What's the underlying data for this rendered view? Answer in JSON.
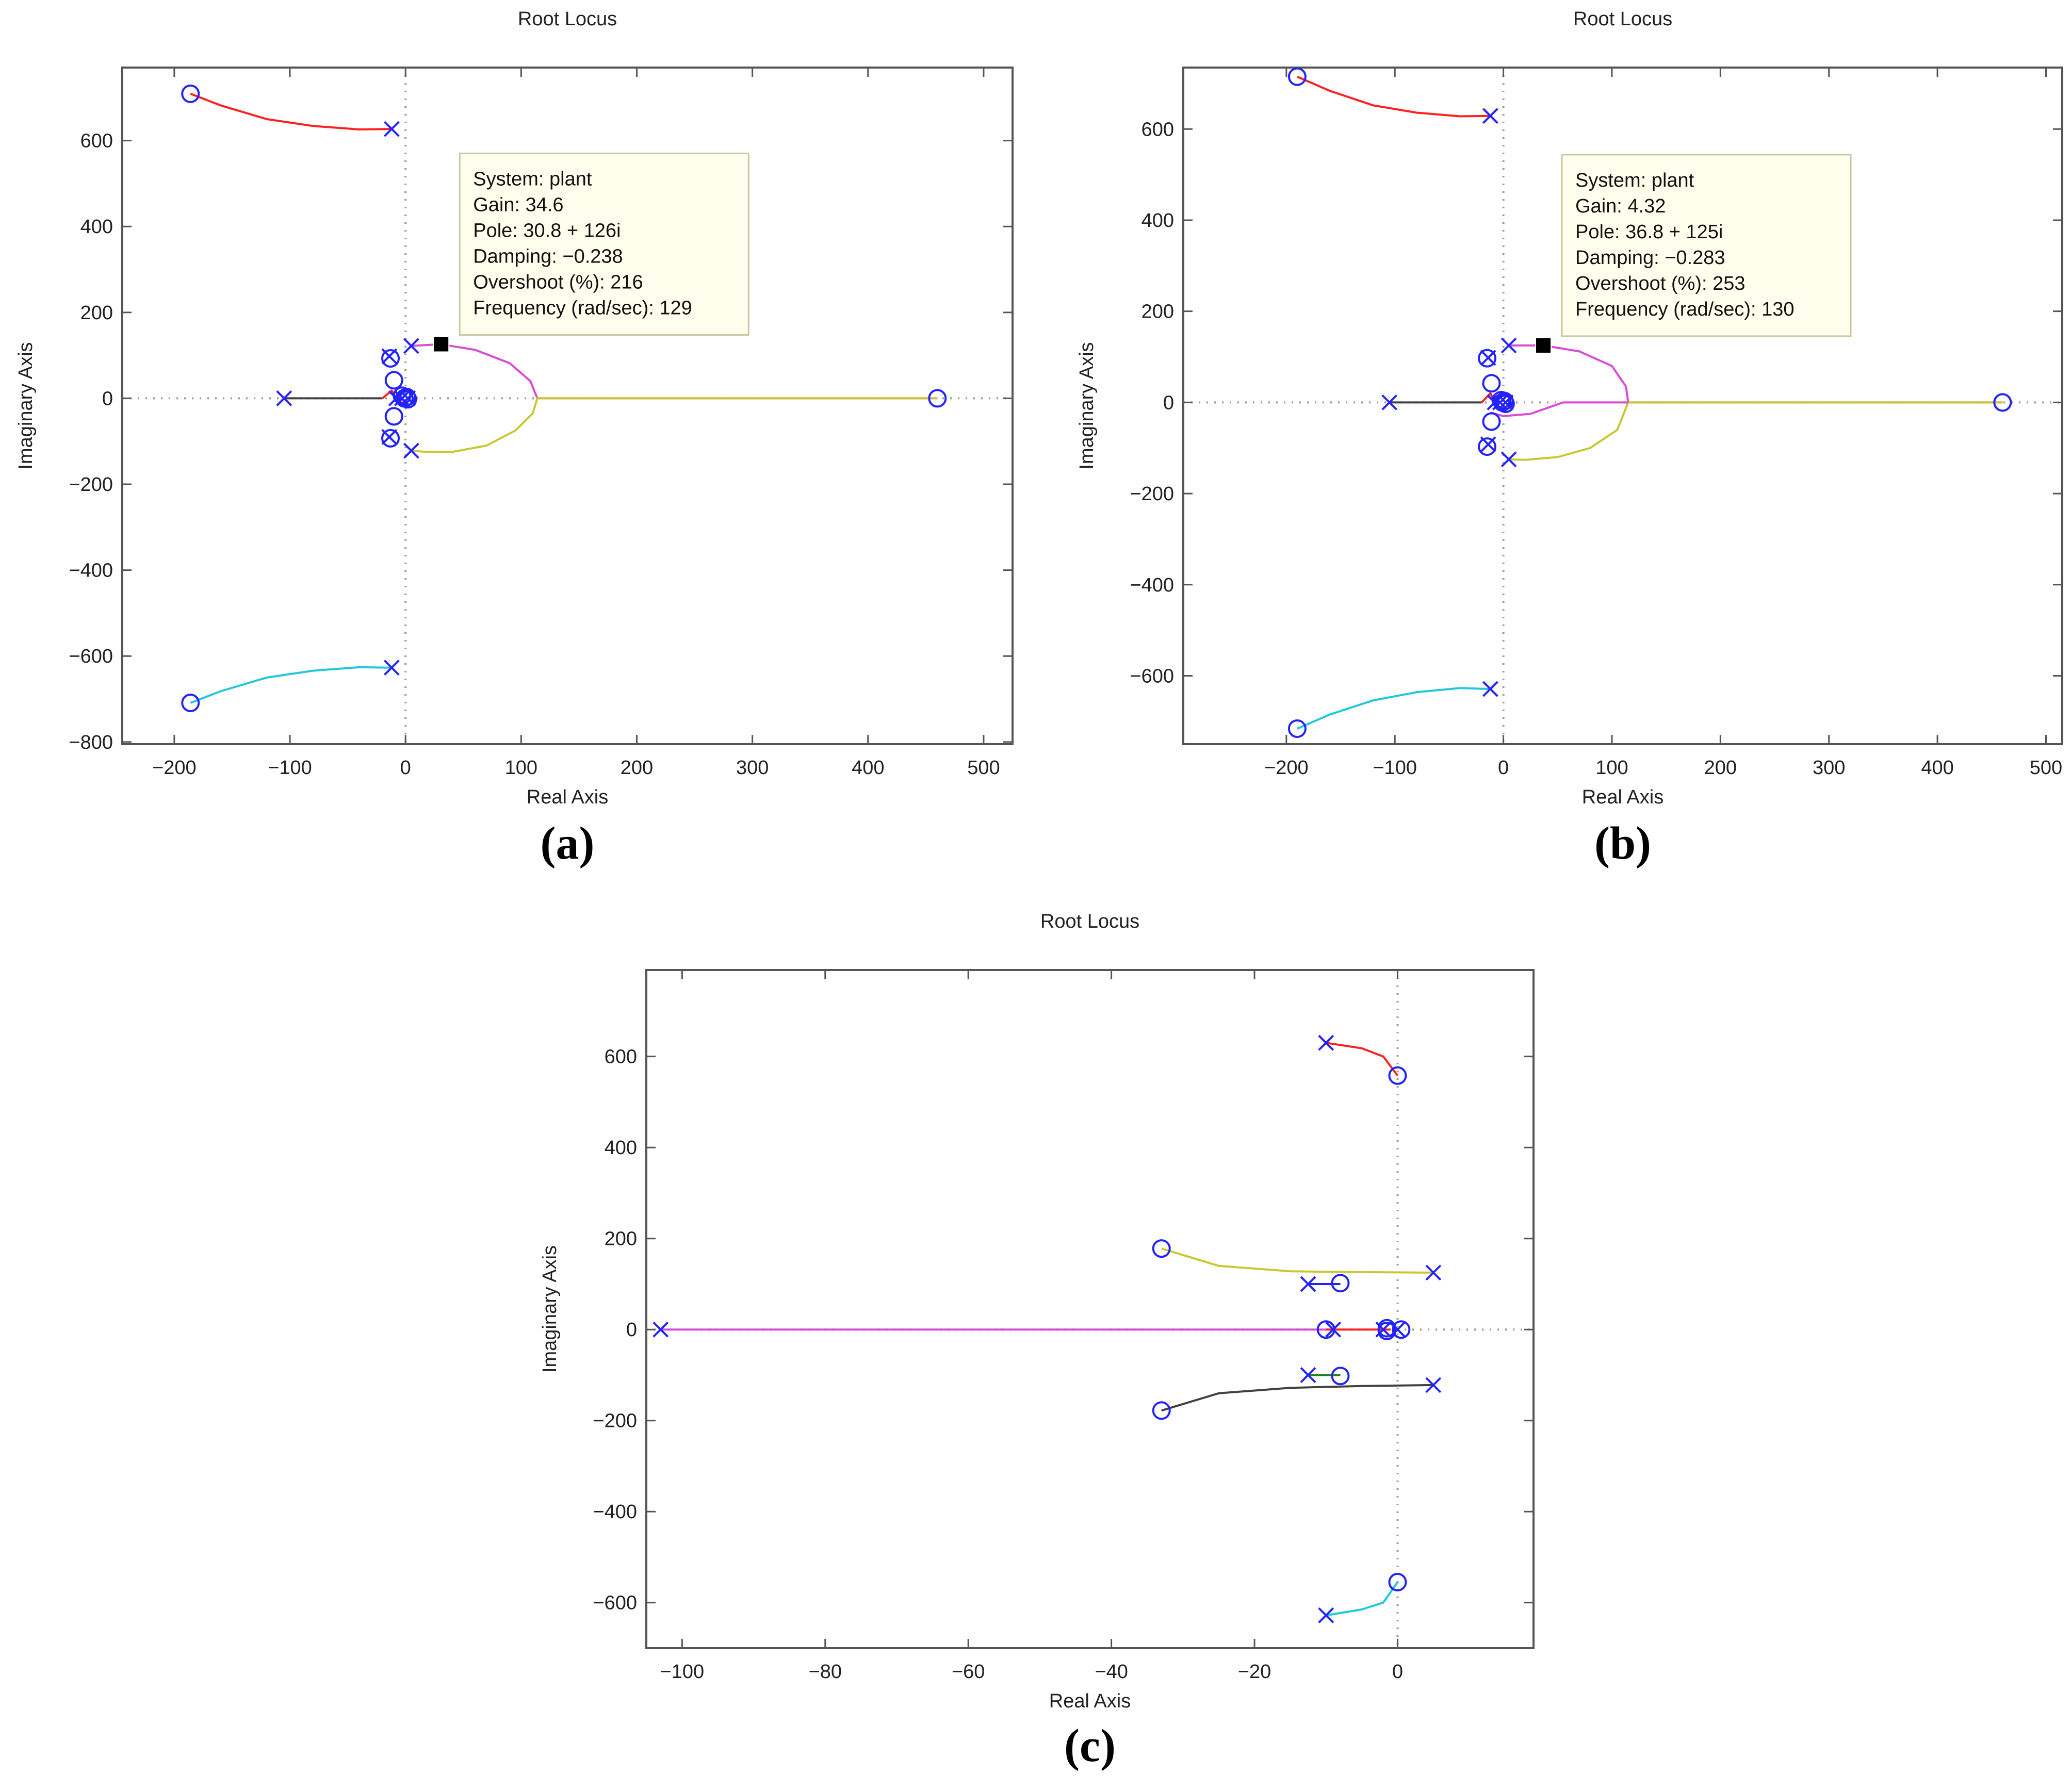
{
  "colors": {
    "background": "#ffffff",
    "axis_frame": "#555555",
    "axis_text": "#222222",
    "pole_zero_marker": "#2323ff",
    "zero_axis_dotted": "#9a9a9a",
    "datatip_background": "#ffffee",
    "datatip_border": "#c8c8a0",
    "datatip_marker": "#000000"
  },
  "chart_data": [
    {
      "type": "line",
      "panel": "a",
      "caption": {
        "open": "(",
        "letter": "a",
        "close": ")"
      },
      "title": "Root Locus",
      "xlabel": "Real Axis",
      "ylabel": "Imaginary Axis",
      "xlim": [
        -245,
        525
      ],
      "ylim": [
        -805,
        770
      ],
      "xticks": [
        -200,
        -100,
        0,
        100,
        200,
        300,
        400,
        500
      ],
      "yticks": [
        -800,
        -600,
        -400,
        -200,
        0,
        200,
        400,
        600
      ],
      "xtick_labels": [
        "−200",
        "−100",
        "0",
        "100",
        "200",
        "300",
        "400",
        "500"
      ],
      "ytick_labels": [
        "−800",
        "−600",
        "−400",
        "−200",
        "0",
        "200",
        "400",
        "600"
      ],
      "grid": false,
      "branches": [
        {
          "color": "#ff2020",
          "points": [
            [
              -12,
              627
            ],
            [
              -40,
              626
            ],
            [
              -80,
              634
            ],
            [
              -120,
              650
            ],
            [
              -160,
              682
            ],
            [
              -186,
              709
            ]
          ]
        },
        {
          "color": "#20c8dc",
          "points": [
            [
              -12,
              -627
            ],
            [
              -40,
              -626
            ],
            [
              -80,
              -634
            ],
            [
              -120,
              -650
            ],
            [
              -160,
              -682
            ],
            [
              -186,
              -709
            ]
          ]
        },
        {
          "color": "#d84ad8",
          "points": [
            [
              5,
              122
            ],
            [
              30,
              126
            ],
            [
              60,
              113
            ],
            [
              90,
              82
            ],
            [
              108,
              40
            ],
            [
              114,
              0
            ],
            [
              460,
              0
            ]
          ]
        },
        {
          "color": "#c8c832",
          "points": [
            [
              5,
              -122
            ],
            [
              15,
              -124
            ],
            [
              40,
              -125
            ],
            [
              70,
              -110
            ],
            [
              95,
              -75
            ],
            [
              110,
              -35
            ],
            [
              114,
              0
            ],
            [
              460,
              0
            ]
          ]
        },
        {
          "color": "#404040",
          "points": [
            [
              -105,
              0
            ],
            [
              -20,
              0
            ]
          ]
        },
        {
          "color": "#ff2020",
          "points": [
            [
              -20,
              0
            ],
            [
              -12,
              18
            ],
            [
              -8,
              0
            ]
          ]
        },
        {
          "color": "#d84ad8",
          "points": [
            [
              -8,
              -5
            ],
            [
              0,
              -5
            ]
          ]
        }
      ],
      "poles": [
        [
          -12,
          627
        ],
        [
          -12,
          -627
        ],
        [
          5,
          122
        ],
        [
          5,
          -122
        ],
        [
          -105,
          0
        ],
        [
          -14,
          98
        ],
        [
          -14,
          -90
        ],
        [
          -3,
          0
        ],
        [
          2,
          0
        ],
        [
          -8,
          0
        ]
      ],
      "zeros": [
        [
          -186,
          709
        ],
        [
          -186,
          -709
        ],
        [
          460,
          0
        ],
        [
          -13,
          93
        ],
        [
          -13,
          -93
        ],
        [
          -10,
          42
        ],
        [
          -10,
          -42
        ],
        [
          -3,
          6
        ],
        [
          1,
          3
        ],
        [
          2,
          -2
        ],
        [
          -1,
          0
        ]
      ],
      "datatip": {
        "marker": [
          30.8,
          126
        ],
        "lines": [
          "System: plant",
          "Gain: 34.6",
          "Pole: 30.8 + 126i",
          "Damping: −0.238",
          "Overshoot (%): 216",
          "Frequency (rad/sec): 129"
        ]
      }
    },
    {
      "type": "line",
      "panel": "b",
      "caption": {
        "open": "(",
        "letter": "b",
        "close": ")"
      },
      "title": "Root Locus",
      "xlabel": "Real Axis",
      "ylabel": "Imaginary Axis",
      "xlim": [
        -295,
        515
      ],
      "ylim": [
        -750,
        735
      ],
      "xticks": [
        -200,
        -100,
        0,
        100,
        200,
        300,
        400,
        500
      ],
      "yticks": [
        -600,
        -400,
        -200,
        0,
        200,
        400,
        600
      ],
      "xtick_labels": [
        "−200",
        "−100",
        "0",
        "100",
        "200",
        "300",
        "400",
        "500"
      ],
      "ytick_labels": [
        "−600",
        "−400",
        "−200",
        "0",
        "200",
        "400",
        "600"
      ],
      "grid": false,
      "branches": [
        {
          "color": "#ff2020",
          "points": [
            [
              -12,
              629
            ],
            [
              -40,
              628
            ],
            [
              -80,
              636
            ],
            [
              -120,
              652
            ],
            [
              -160,
              684
            ],
            [
              -190,
              715
            ]
          ]
        },
        {
          "color": "#20c8dc",
          "points": [
            [
              -12,
              -629
            ],
            [
              -40,
              -627
            ],
            [
              -80,
              -636
            ],
            [
              -120,
              -654
            ],
            [
              -160,
              -685
            ],
            [
              -190,
              -716
            ]
          ]
        },
        {
          "color": "#d84ad8",
          "points": [
            [
              5,
              125
            ],
            [
              36.8,
              125
            ],
            [
              70,
              112
            ],
            [
              100,
              80
            ],
            [
              113,
              35
            ],
            [
              115,
              0
            ],
            [
              460,
              0
            ]
          ]
        },
        {
          "color": "#c8c832",
          "points": [
            [
              5,
              -125
            ],
            [
              20,
              -126
            ],
            [
              50,
              -120
            ],
            [
              80,
              -100
            ],
            [
              105,
              -60
            ],
            [
              115,
              0
            ],
            [
              460,
              0
            ]
          ]
        },
        {
          "color": "#d84ad8",
          "points": [
            [
              -12,
              -22
            ],
            [
              0,
              -30
            ],
            [
              25,
              -25
            ],
            [
              55,
              0
            ],
            [
              115,
              0
            ]
          ]
        },
        {
          "color": "#404040",
          "points": [
            [
              -105,
              0
            ],
            [
              -20,
              0
            ]
          ]
        },
        {
          "color": "#ff2020",
          "points": [
            [
              -20,
              0
            ],
            [
              -12,
              20
            ],
            [
              -8,
              0
            ]
          ]
        }
      ],
      "poles": [
        [
          -12,
          629
        ],
        [
          -12,
          -629
        ],
        [
          5,
          125
        ],
        [
          5,
          -125
        ],
        [
          -105,
          0
        ],
        [
          -14,
          98
        ],
        [
          -14,
          -92
        ],
        [
          -3,
          0
        ],
        [
          2,
          0
        ],
        [
          -8,
          0
        ]
      ],
      "zeros": [
        [
          -190,
          715
        ],
        [
          -190,
          -716
        ],
        [
          460,
          0
        ],
        [
          -15,
          97
        ],
        [
          -15,
          -97
        ],
        [
          -11,
          42
        ],
        [
          -11,
          -42
        ],
        [
          -2,
          5
        ],
        [
          1,
          3
        ],
        [
          2,
          -3
        ],
        [
          -1,
          0
        ]
      ],
      "datatip": {
        "marker": [
          36.8,
          125
        ],
        "lines": [
          "System: plant",
          "Gain: 4.32",
          "Pole: 36.8 + 125i",
          "Damping: −0.283",
          "Overshoot (%): 253",
          "Frequency (rad/sec): 130"
        ]
      }
    },
    {
      "type": "line",
      "panel": "c",
      "caption": {
        "open": "(",
        "letter": "c",
        "close": ")"
      },
      "title": "Root Locus",
      "xlabel": "Real Axis",
      "ylabel": "Imaginary Axis",
      "xlim": [
        -105,
        19
      ],
      "ylim": [
        -700,
        790
      ],
      "xticks": [
        -100,
        -80,
        -60,
        -40,
        -20,
        0
      ],
      "yticks": [
        -600,
        -400,
        -200,
        0,
        200,
        400,
        600
      ],
      "xtick_labels": [
        "−100",
        "−80",
        "−60",
        "−40",
        "−20",
        "0"
      ],
      "ytick_labels": [
        "−600",
        "−400",
        "−200",
        "0",
        "200",
        "400",
        "600"
      ],
      "grid": false,
      "branches": [
        {
          "color": "#ff2020",
          "points": [
            [
              -10,
              630
            ],
            [
              -5,
              618
            ],
            [
              -2,
              600
            ],
            [
              0,
              558
            ]
          ]
        },
        {
          "color": "#20c8dc",
          "points": [
            [
              -10,
              -628
            ],
            [
              -5,
              -615
            ],
            [
              -2,
              -600
            ],
            [
              0,
              -555
            ]
          ]
        },
        {
          "color": "#c8c832",
          "points": [
            [
              5,
              125
            ],
            [
              -5,
              126
            ],
            [
              -15,
              128
            ],
            [
              -25,
              140
            ],
            [
              -33,
              178
            ]
          ]
        },
        {
          "color": "#404040",
          "points": [
            [
              5,
              -122
            ],
            [
              -5,
              -124
            ],
            [
              -15,
              -128
            ],
            [
              -25,
              -140
            ],
            [
              -33,
              -178
            ]
          ]
        },
        {
          "color": "#2323ff",
          "points": [
            [
              -12.5,
              100
            ],
            [
              -8,
              100
            ]
          ]
        },
        {
          "color": "#208020",
          "points": [
            [
              -12.5,
              -100
            ],
            [
              -8,
              -100
            ]
          ]
        },
        {
          "color": "#d84ad8",
          "points": [
            [
              -103,
              0
            ],
            [
              -10,
              0
            ]
          ]
        },
        {
          "color": "#ff2020",
          "points": [
            [
              -10,
              0
            ],
            [
              -1,
              0
            ]
          ]
        }
      ],
      "poles": [
        [
          -10,
          630
        ],
        [
          -10,
          -628
        ],
        [
          5,
          125
        ],
        [
          5,
          -122
        ],
        [
          -12.5,
          100
        ],
        [
          -12.5,
          -100
        ],
        [
          -103,
          0
        ],
        [
          -9,
          0
        ],
        [
          -2,
          0
        ],
        [
          0,
          0
        ]
      ],
      "zeros": [
        [
          0,
          558
        ],
        [
          0,
          -555
        ],
        [
          -33,
          178
        ],
        [
          -33,
          -178
        ],
        [
          -8,
          102
        ],
        [
          -8,
          -102
        ],
        [
          -10,
          0
        ],
        [
          -1.5,
          3
        ],
        [
          -1.5,
          -3
        ],
        [
          0.5,
          0
        ]
      ],
      "datatip": null
    }
  ]
}
